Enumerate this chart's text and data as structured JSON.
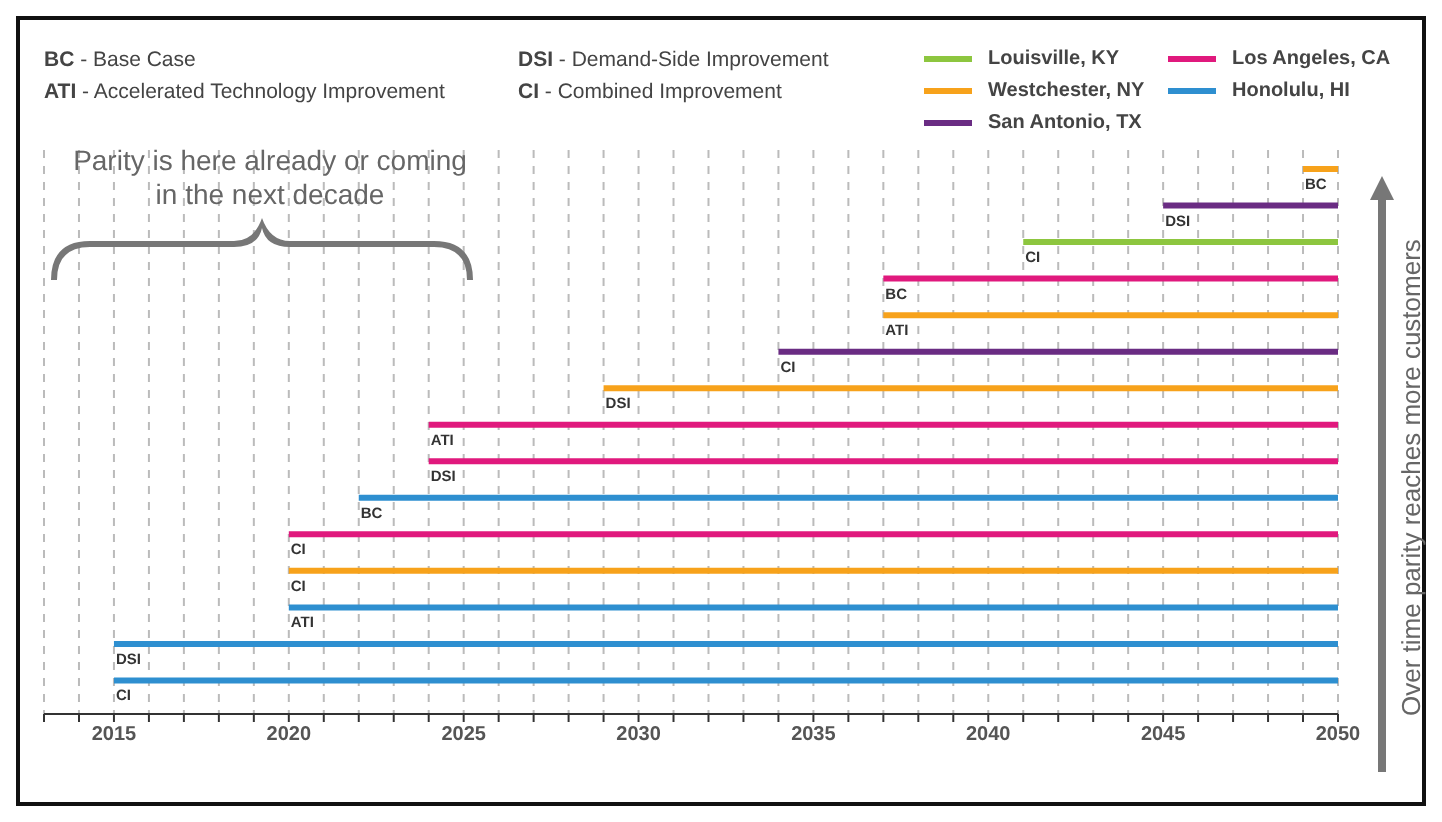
{
  "chart_data": {
    "type": "bar",
    "orientation": "horizontal",
    "categories": [
      "BC",
      "DSI",
      "CI",
      "BC",
      "ATI",
      "CI",
      "DSI",
      "ATI",
      "DSI",
      "BC",
      "CI",
      "CI",
      "ATI",
      "DSI",
      "CI"
    ],
    "series": [
      {
        "name": "Louisville, KY",
        "color": "#8dc63f",
        "base": [
          null,
          null,
          2041,
          null,
          null,
          null,
          null,
          null,
          null,
          null,
          null,
          null,
          null,
          null,
          null
        ],
        "values": [
          null,
          null,
          9,
          null,
          null,
          null,
          null,
          null,
          null,
          null,
          null,
          null,
          null,
          null,
          null
        ]
      },
      {
        "name": "Westchester, NY",
        "color": "#f7a21b",
        "base": [
          2049,
          null,
          null,
          null,
          2037,
          null,
          2029,
          null,
          null,
          null,
          null,
          2020,
          null,
          null,
          null
        ],
        "values": [
          1,
          null,
          null,
          null,
          13,
          null,
          21,
          null,
          null,
          null,
          null,
          30,
          null,
          null,
          null
        ]
      },
      {
        "name": "San Antonio, TX",
        "color": "#6a2c83",
        "base": [
          null,
          2045,
          null,
          null,
          null,
          2034,
          null,
          null,
          null,
          null,
          null,
          null,
          null,
          null,
          null
        ],
        "values": [
          null,
          5,
          null,
          null,
          null,
          16,
          null,
          null,
          null,
          null,
          null,
          null,
          null,
          null,
          null
        ]
      },
      {
        "name": "Los Angeles, CA",
        "color": "#e0197d",
        "base": [
          null,
          null,
          null,
          2037,
          null,
          null,
          null,
          2024,
          2024,
          null,
          2020,
          null,
          null,
          null,
          null
        ],
        "values": [
          null,
          null,
          null,
          13,
          null,
          null,
          null,
          26,
          26,
          null,
          30,
          null,
          null,
          null,
          null
        ]
      },
      {
        "name": "Honolulu, HI",
        "color": "#2e8fd0",
        "base": [
          null,
          null,
          null,
          null,
          null,
          null,
          null,
          null,
          null,
          2022,
          null,
          null,
          2020,
          2015,
          2015
        ],
        "values": [
          null,
          null,
          null,
          null,
          null,
          null,
          null,
          null,
          null,
          28,
          null,
          null,
          30,
          35,
          35
        ]
      }
    ],
    "xlim": [
      2013,
      2050
    ],
    "xticks": [
      {
        "value": 2013,
        "label": null
      },
      {
        "value": 2014,
        "label": null
      },
      2015,
      {
        "value": 2016,
        "label": null
      },
      {
        "value": 2017,
        "label": null
      },
      {
        "value": 2018,
        "label": null
      },
      {
        "value": 2019,
        "label": null
      },
      2020,
      {
        "value": 2021,
        "label": null
      },
      {
        "value": 2022,
        "label": null
      },
      {
        "value": 2023,
        "label": null
      },
      {
        "value": 2024,
        "label": null
      },
      2025,
      {
        "value": 2026,
        "label": null
      },
      {
        "value": 2027,
        "label": null
      },
      {
        "value": 2028,
        "label": null
      },
      {
        "value": 2029,
        "label": null
      },
      2030,
      {
        "value": 2031,
        "label": null
      },
      {
        "value": 2032,
        "label": null
      },
      {
        "value": 2033,
        "label": null
      },
      {
        "value": 2034,
        "label": null
      },
      2035,
      {
        "value": 2036,
        "label": null
      },
      {
        "value": 2037,
        "label": null
      },
      {
        "value": 2038,
        "label": null
      },
      {
        "value": 2039,
        "label": null
      },
      2040,
      {
        "value": 2041,
        "label": null
      },
      {
        "value": 2042,
        "label": null
      },
      {
        "value": 2043,
        "label": null
      },
      {
        "value": 2044,
        "label": null
      },
      2045,
      {
        "value": 2046,
        "label": null
      },
      {
        "value": 2047,
        "label": null
      },
      {
        "value": 2048,
        "label": null
      },
      {
        "value": 2049,
        "label": null
      },
      2050
    ],
    "grid": "x",
    "legend": "top right",
    "annotations": [
      "BC - Base Case",
      "ATI - Accelerated Technology Improvement",
      "DSI - Demand-Side Improvement",
      "CI - Combined Improvement",
      "Parity is here already or coming in the next decade",
      "Over time parity reaches more customers"
    ]
  }
}
